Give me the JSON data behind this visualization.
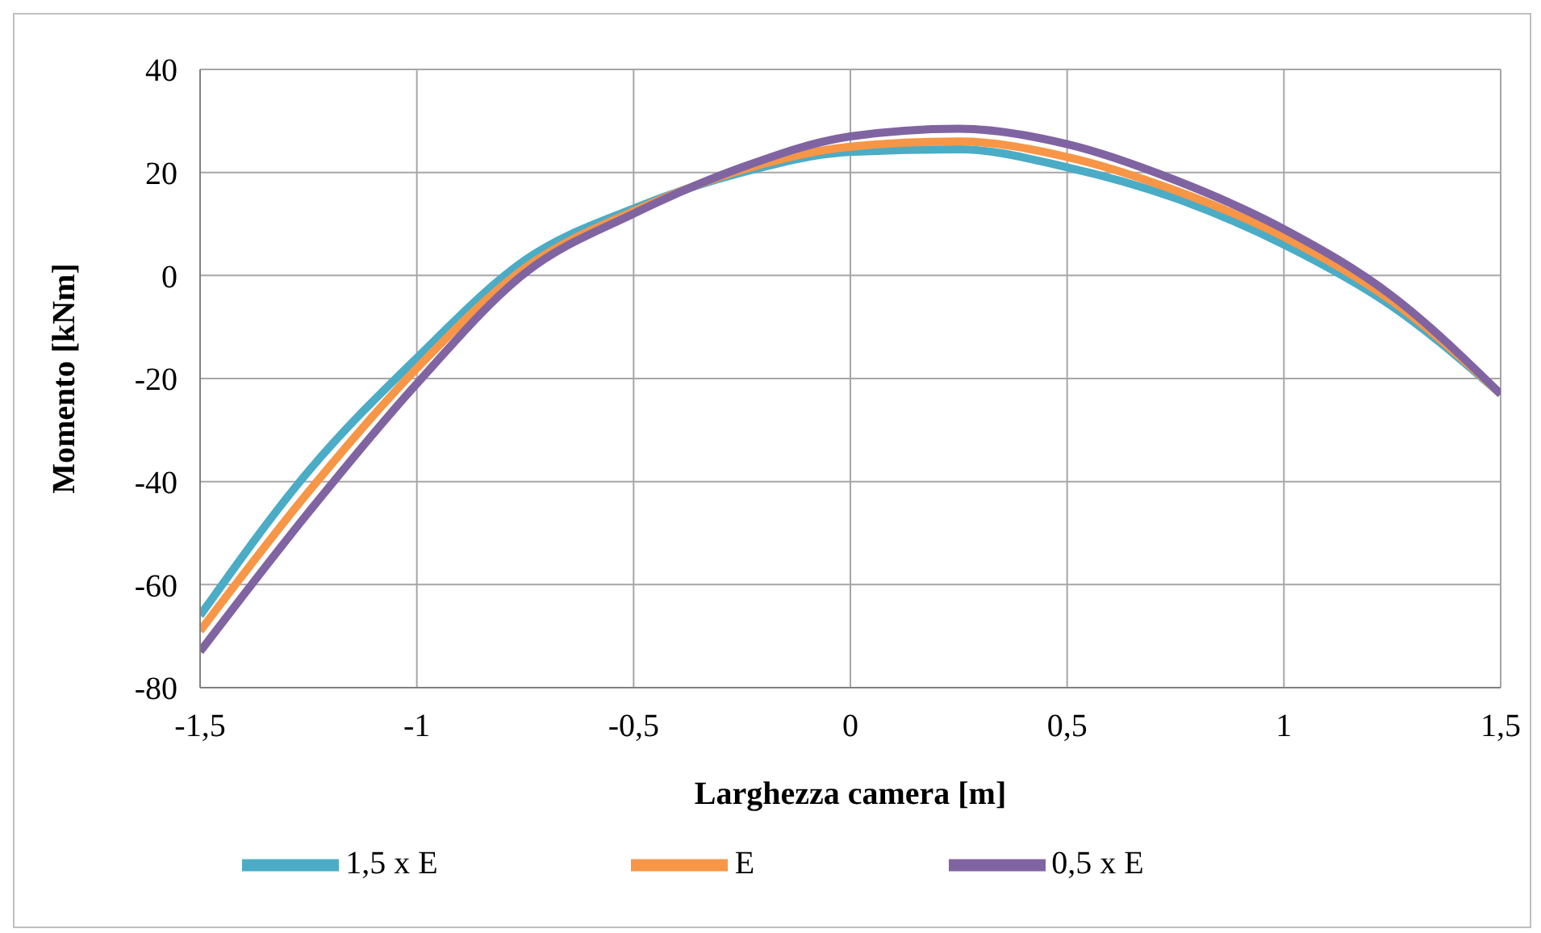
{
  "chart_data": {
    "type": "line",
    "xlabel": "Larghezza camera [m]",
    "ylabel": "Momento [kNm]",
    "x": [
      -1.5,
      -1.25,
      -1,
      -0.75,
      -0.5,
      -0.25,
      0,
      0.25,
      0.5,
      0.75,
      1,
      1.25,
      1.5
    ],
    "series": [
      {
        "name": "1,5 x E",
        "color": "#4bacc6",
        "values": [
          -66,
          -38,
          -16,
          3,
          13,
          20,
          24,
          24.5,
          21,
          15,
          6,
          -6,
          -23
        ]
      },
      {
        "name": "E",
        "color": "#f79646",
        "values": [
          -69,
          -42,
          -18,
          1.5,
          12.5,
          20.5,
          25,
          26,
          23,
          16.5,
          7.5,
          -5,
          -23
        ]
      },
      {
        "name": "0,5 x E",
        "color": "#8064a2",
        "values": [
          -73,
          -46,
          -21,
          0.5,
          12,
          21,
          27,
          28.5,
          25.5,
          18.5,
          9,
          -4,
          -23
        ]
      }
    ],
    "xlim": [
      -1.5,
      1.5
    ],
    "xticks": [
      {
        "value": -1.5,
        "label": "-1,5"
      },
      -1,
      {
        "value": -0.5,
        "label": "-0,5"
      },
      0,
      {
        "value": 0.5,
        "label": "0,5"
      },
      1,
      {
        "value": 1.5,
        "label": "1,5"
      }
    ],
    "ylim": [
      -80,
      40
    ],
    "yticks": [
      -80,
      -60,
      -40,
      -20,
      0,
      20,
      40
    ],
    "grid": true,
    "legend": "bottom",
    "marker": "none",
    "line_style": "solid"
  }
}
